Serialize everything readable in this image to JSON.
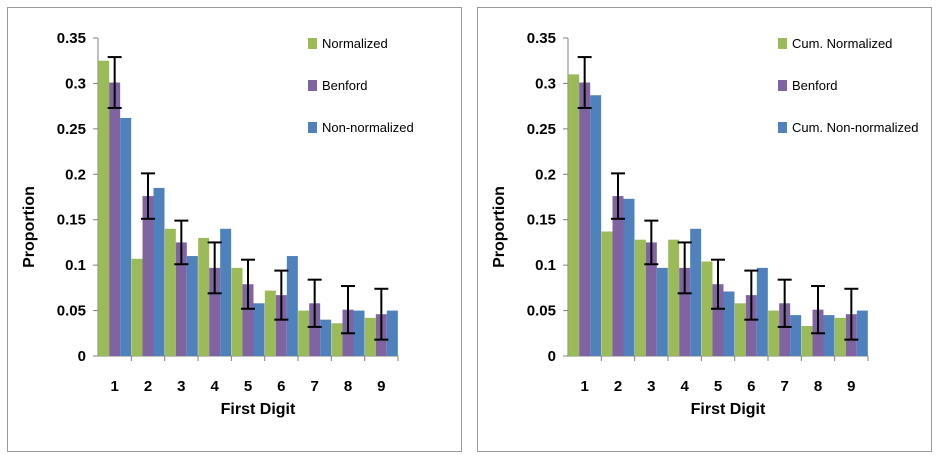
{
  "colors": {
    "green": "#9bbb59",
    "purple": "#8064a2",
    "blue": "#4f81bd",
    "axis": "#808080",
    "errorbar": "#000000"
  },
  "chart_data": [
    {
      "type": "bar",
      "xlabel": "First Digit",
      "ylabel": "Proportion",
      "ylim": [
        0,
        0.35
      ],
      "yticks": [
        "0",
        "0.05",
        "0.1",
        "0.15",
        "0.2",
        "0.25",
        "0.3",
        "0.35"
      ],
      "categories": [
        "1",
        "2",
        "3",
        "4",
        "5",
        "6",
        "7",
        "8",
        "9"
      ],
      "legend_position": "top-right",
      "series": [
        {
          "name": "Normalized",
          "color": "green",
          "values": [
            0.325,
            0.107,
            0.14,
            0.13,
            0.097,
            0.072,
            0.05,
            0.036,
            0.042
          ]
        },
        {
          "name": "Benford",
          "color": "purple",
          "values": [
            0.301,
            0.176,
            0.125,
            0.097,
            0.079,
            0.067,
            0.058,
            0.051,
            0.046
          ],
          "error": [
            0.028,
            0.025,
            0.024,
            0.028,
            0.027,
            0.027,
            0.026,
            0.026,
            0.028
          ]
        },
        {
          "name": "Non-normalized",
          "color": "blue",
          "values": [
            0.262,
            0.185,
            0.11,
            0.14,
            0.058,
            0.11,
            0.04,
            0.05,
            0.05
          ]
        }
      ]
    },
    {
      "type": "bar",
      "xlabel": "First Digit",
      "ylabel": "Proportion",
      "ylim": [
        0,
        0.35
      ],
      "yticks": [
        "0",
        "0.05",
        "0.1",
        "0.15",
        "0.2",
        "0.25",
        "0.3",
        "0.35"
      ],
      "categories": [
        "1",
        "2",
        "3",
        "4",
        "5",
        "6",
        "7",
        "8",
        "9"
      ],
      "legend_position": "top-right",
      "series": [
        {
          "name": "Cum. Normalized",
          "color": "green",
          "values": [
            0.31,
            0.137,
            0.128,
            0.128,
            0.104,
            0.058,
            0.05,
            0.033,
            0.042
          ]
        },
        {
          "name": "Benford",
          "color": "purple",
          "values": [
            0.301,
            0.176,
            0.125,
            0.097,
            0.079,
            0.067,
            0.058,
            0.051,
            0.046
          ],
          "error": [
            0.028,
            0.025,
            0.024,
            0.028,
            0.027,
            0.027,
            0.026,
            0.026,
            0.028
          ]
        },
        {
          "name": "Cum. Non-normalized",
          "color": "blue",
          "values": [
            0.287,
            0.173,
            0.097,
            0.14,
            0.071,
            0.097,
            0.045,
            0.045,
            0.05
          ]
        }
      ]
    }
  ]
}
